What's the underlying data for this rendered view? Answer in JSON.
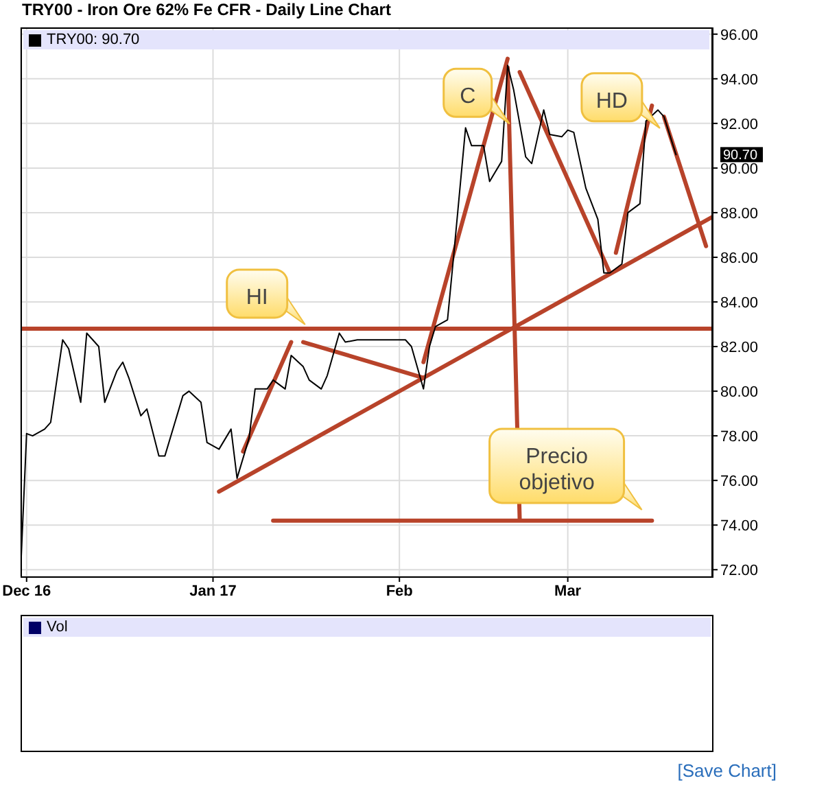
{
  "chart_data": [
    {
      "type": "line",
      "title": "TRY00 - Iron Ore 62% Fe CFR - Daily Line Chart",
      "xlim": [
        "2016-11-30",
        "2017-03-25"
      ],
      "ylim": [
        71.7,
        96.3
      ],
      "xticks": [
        {
          "value": "2016-12-01",
          "label": "Dec 16"
        },
        {
          "value": "2017-01-01",
          "label": "Jan 17"
        },
        {
          "value": "2017-02-01",
          "label": "Feb"
        },
        {
          "value": "2017-03-01",
          "label": "Mar"
        }
      ],
      "yticks": [
        {
          "value": 72,
          "label": "72.00"
        },
        {
          "value": 74,
          "label": "74.00"
        },
        {
          "value": 76,
          "label": "76.00"
        },
        {
          "value": 78,
          "label": "78.00"
        },
        {
          "value": 80,
          "label": "80.00"
        },
        {
          "value": 82,
          "label": "82.00"
        },
        {
          "value": 84,
          "label": "84.00"
        },
        {
          "value": 86,
          "label": "86.00"
        },
        {
          "value": 88,
          "label": "88.00"
        },
        {
          "value": 90,
          "label": "90.00"
        },
        {
          "value": 92,
          "label": "92.00"
        },
        {
          "value": 94,
          "label": "94.00"
        },
        {
          "value": 96,
          "label": "96.00"
        }
      ],
      "grid": true,
      "legend": "top left",
      "series": [
        {
          "name": "TRY00: 90.70",
          "color": "#000000",
          "x": [
            "2016-11-30",
            "2016-12-01",
            "2016-12-02",
            "2016-12-04",
            "2016-12-05",
            "2016-12-07",
            "2016-12-08",
            "2016-12-10",
            "2016-12-11",
            "2016-12-13",
            "2016-12-14",
            "2016-12-16",
            "2016-12-17",
            "2016-12-18",
            "2016-12-20",
            "2016-12-21",
            "2016-12-23",
            "2016-12-24",
            "2016-12-26",
            "2016-12-27",
            "2016-12-28",
            "2016-12-30",
            "2016-12-31",
            "2017-01-02",
            "2017-01-04",
            "2017-01-05",
            "2017-01-07",
            "2017-01-08",
            "2017-01-10",
            "2017-01-11",
            "2017-01-13",
            "2017-01-14",
            "2017-01-16",
            "2017-01-17",
            "2017-01-19",
            "2017-01-20",
            "2017-01-22",
            "2017-01-23",
            "2017-01-25",
            "2017-01-29",
            "2017-02-02",
            "2017-02-03",
            "2017-02-05",
            "2017-02-06",
            "2017-02-07",
            "2017-02-09",
            "2017-02-10",
            "2017-02-12",
            "2017-02-13",
            "2017-02-15",
            "2017-02-16",
            "2017-02-18",
            "2017-02-19",
            "2017-02-20",
            "2017-02-22",
            "2017-02-23",
            "2017-02-25",
            "2017-02-26",
            "2017-02-28",
            "2017-03-01",
            "2017-03-02",
            "2017-03-04",
            "2017-03-06",
            "2017-03-07",
            "2017-03-08",
            "2017-03-10",
            "2017-03-11",
            "2017-03-13",
            "2017-03-14",
            "2017-03-16",
            "2017-03-17",
            "2017-03-19"
          ],
          "values": [
            71.9,
            78.1,
            78.0,
            78.3,
            78.6,
            82.3,
            81.9,
            79.5,
            82.6,
            82.0,
            79.5,
            80.9,
            81.3,
            80.6,
            78.9,
            79.2,
            77.1,
            77.1,
            78.9,
            79.8,
            80.0,
            79.5,
            77.7,
            77.4,
            78.3,
            76.1,
            77.9,
            80.1,
            80.1,
            80.5,
            80.1,
            81.6,
            81.1,
            80.5,
            80.1,
            80.7,
            82.6,
            82.2,
            82.3,
            82.3,
            82.3,
            82.0,
            80.1,
            82.0,
            82.9,
            83.2,
            86.0,
            91.8,
            91.0,
            91.0,
            89.4,
            90.3,
            94.6,
            93.5,
            90.5,
            90.2,
            92.6,
            91.5,
            91.4,
            91.7,
            91.6,
            89.1,
            87.7,
            85.3,
            85.3,
            85.7,
            88.0,
            88.4,
            92.1,
            92.6,
            92.3,
            90.6
          ]
        },
        {
          "color": "#b8432a",
          "x": [
            "2017-01-11",
            "2017-03-15"
          ],
          "values": [
            74.2,
            74.2
          ]
        },
        {
          "color": "#b8432a",
          "x": [
            "2017-02-19",
            "2017-02-21"
          ],
          "values": [
            94.5,
            74.3
          ]
        },
        {
          "color": "#b8432a",
          "x": [
            "2017-01-02",
            "2017-03-25"
          ],
          "values": [
            75.5,
            87.8
          ]
        },
        {
          "color": "#b8432a",
          "x": [
            "2017-01-06",
            "2017-01-14"
          ],
          "values": [
            77.3,
            82.2
          ]
        },
        {
          "color": "#b8432a",
          "x": [
            "2017-01-16",
            "2017-02-05"
          ],
          "values": [
            82.2,
            80.6
          ]
        },
        {
          "color": "#b8432a",
          "x": [
            "2017-02-05",
            "2017-02-19"
          ],
          "values": [
            81.3,
            94.9
          ]
        },
        {
          "color": "#b8432a",
          "x": [
            "2017-02-21",
            "2017-03-08"
          ],
          "values": [
            94.3,
            85.3
          ]
        },
        {
          "color": "#b8432a",
          "x": [
            "2017-03-09",
            "2017-03-15"
          ],
          "values": [
            86.2,
            92.8
          ]
        },
        {
          "color": "#b8432a",
          "x": [
            "2017-03-17",
            "2017-03-24"
          ],
          "values": [
            92.3,
            86.5
          ]
        }
      ],
      "ref_lines": [
        {
          "axis": "y",
          "value": 82.8,
          "color": "#b8432a"
        }
      ],
      "annotations": [
        {
          "text": "HI",
          "x": "2017-01-17",
          "y": 82.8
        },
        {
          "text": "C",
          "x": "2017-02-20",
          "y": 91.8
        },
        {
          "text": "HD",
          "x": "2017-03-17",
          "y": 91.6
        },
        {
          "text": "Precio objetivo",
          "x": "2017-03-14",
          "y": 74.5
        },
        "90.70",
        "[Save Chart]"
      ]
    },
    {
      "type": "other",
      "title": "Vol"
    }
  ]
}
